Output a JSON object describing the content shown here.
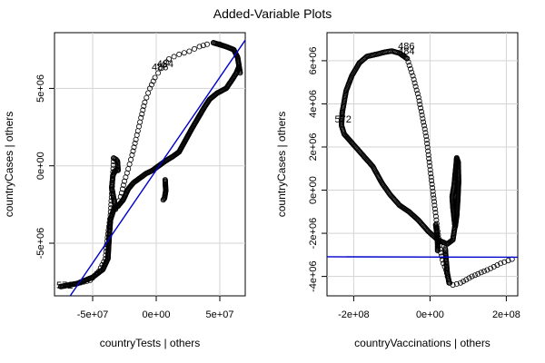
{
  "figure": {
    "title": "Added-Variable Plots"
  },
  "chart_data": [
    {
      "type": "scatter",
      "title": "",
      "xlabel": "countryTests | others",
      "ylabel": "countryCases  | others",
      "xlim": [
        -80000000,
        70000000
      ],
      "ylim": [
        -8400000,
        8600000
      ],
      "xticks": [
        -50000000,
        0,
        50000000
      ],
      "xtick_labels": [
        "-5e+07",
        "0e+00",
        "5e+07"
      ],
      "yticks": [
        -5000000,
        0,
        5000000
      ],
      "ytick_labels": [
        "-5e+06",
        "0e+00",
        "5e+06"
      ],
      "grid": true,
      "marker": "open-circle",
      "point_color": "#000000",
      "fit_line": {
        "color": "#0000cc",
        "slope": 0.12,
        "intercept": -280000
      },
      "annotations": [
        {
          "text": "486",
          "x": 3000000,
          "y": 6400000
        },
        {
          "text": "484",
          "x": 7000000,
          "y": 6600000
        },
        {
          "text": "572",
          "x": -72000000,
          "y": -7700000
        }
      ],
      "paths": [
        {
          "points": [
            [
              -75000000,
              -7800000
            ],
            [
              -62000000,
              -7600000
            ],
            [
              -50000000,
              -7200000
            ],
            [
              -42000000,
              -6700000
            ],
            [
              -38000000,
              -6000000
            ],
            [
              -37000000,
              -4600000
            ],
            [
              -36000000,
              -3500000
            ],
            [
              -33000000,
              -2700000
            ],
            [
              -30000000,
              -2600000
            ],
            [
              -26000000,
              -2200000
            ],
            [
              -22000000,
              -1500000
            ],
            [
              -18000000,
              -1100000
            ],
            [
              -13000000,
              -800000
            ],
            [
              -8000000,
              -500000
            ],
            [
              -3000000,
              -300000
            ],
            [
              2000000,
              0
            ],
            [
              7000000,
              300000
            ],
            [
              13000000,
              600000
            ],
            [
              18000000,
              900000
            ],
            [
              24000000,
              1800000
            ],
            [
              28000000,
              2400000
            ],
            [
              33000000,
              3100000
            ],
            [
              38000000,
              3800000
            ],
            [
              42000000,
              4300000
            ],
            [
              48000000,
              4700000
            ],
            [
              55000000,
              5000000
            ],
            [
              60000000,
              5600000
            ],
            [
              63000000,
              6000000
            ],
            [
              65000000,
              6400000
            ]
          ],
          "step": 1
        },
        {
          "points": [
            [
              -75000000,
              -7800000
            ],
            [
              -62000000,
              -7600000
            ],
            [
              -52000000,
              -7400000
            ],
            [
              -45000000,
              -6800000
            ],
            [
              -40000000,
              -6000000
            ],
            [
              -38000000,
              -4400000
            ],
            [
              -36000000,
              -3200000
            ],
            [
              -35000000,
              -1800000
            ],
            [
              -34000000,
              -400000
            ],
            [
              -33500000,
              500000
            ]
          ],
          "step": 4
        },
        {
          "points": [
            [
              -33500000,
              500000
            ],
            [
              -31500000,
              400000
            ],
            [
              -30500000,
              300000
            ],
            [
              -30000000,
              -300000
            ],
            [
              -32000000,
              -300000
            ],
            [
              -34000000,
              -600000
            ],
            [
              -35000000,
              -1400000
            ],
            [
              -33000000,
              -2300000
            ],
            [
              -32000000,
              -2800000
            ]
          ],
          "step": 1.2
        },
        {
          "points": [
            [
              -32000000,
              -2800000
            ],
            [
              -28000000,
              -2000000
            ],
            [
              -25000000,
              -1000000
            ],
            [
              -22000000,
              -200000
            ],
            [
              -19000000,
              700000
            ],
            [
              -16000000,
              1700000
            ],
            [
              -12000000,
              3100000
            ],
            [
              -9000000,
              4100000
            ],
            [
              -5000000,
              5000000
            ],
            [
              -1000000,
              5700000
            ],
            [
              4000000,
              6300000
            ],
            [
              10000000,
              6900000
            ],
            [
              18000000,
              7200000
            ],
            [
              26000000,
              7400000
            ],
            [
              34000000,
              7700000
            ],
            [
              40000000,
              7850000
            ],
            [
              45000000,
              7950000
            ],
            [
              50000000,
              7850000
            ]
          ],
          "step": 5
        },
        {
          "points": [
            [
              45000000,
              7950000
            ],
            [
              55000000,
              7700000
            ],
            [
              61000000,
              7500000
            ],
            [
              64000000,
              7000000
            ],
            [
              66000000,
              6000000
            ]
          ],
          "step": 1
        },
        {
          "points": [
            [
              7000000,
              -900000
            ],
            [
              7500000,
              -1600000
            ],
            [
              6500000,
              -2100000
            ],
            [
              5500000,
              -2200000
            ]
          ],
          "step": 0.9
        }
      ]
    },
    {
      "type": "scatter",
      "title": "",
      "xlabel": "countryVaccinations | others",
      "ylabel": "countryCases  | others",
      "xlim": [
        -270000000,
        230000000
      ],
      "ylim": [
        -4900000,
        7300000
      ],
      "xticks": [
        -200000000,
        0,
        200000000
      ],
      "xtick_labels": [
        "-2e+08",
        "0e+00",
        "2e+08"
      ],
      "yticks": [
        -4000000,
        -2000000,
        0,
        2000000,
        4000000,
        6000000
      ],
      "ytick_labels": [
        "-4e+06",
        "-2e+06",
        "0e+00",
        "2e+06",
        "4e+06",
        "6e+06"
      ],
      "grid": true,
      "marker": "open-circle",
      "point_color": "#000000",
      "fit_line": {
        "color": "#0000cc",
        "slope": -3.85e-05,
        "intercept": -3100000
      },
      "annotations": [
        {
          "text": "486",
          "x": -62000000,
          "y": 6700000
        },
        {
          "text": "484",
          "x": -62000000,
          "y": 6450000
        },
        {
          "text": "572",
          "x": -228000000,
          "y": 3300000
        }
      ],
      "paths": [
        {
          "points": [
            [
              -230000000,
              3600000
            ],
            [
              -220000000,
              4600000
            ],
            [
              -205000000,
              5300000
            ],
            [
              -185000000,
              5900000
            ],
            [
              -165000000,
              6200000
            ],
            [
              -140000000,
              6300000
            ],
            [
              -118000000,
              6400000
            ],
            [
              -100000000,
              6450000
            ],
            [
              -80000000,
              6350000
            ],
            [
              -60000000,
              6100000
            ]
          ],
          "step": 1.2
        },
        {
          "points": [
            [
              -230000000,
              3600000
            ],
            [
              -232000000,
              3000000
            ],
            [
              -225000000,
              2600000
            ],
            [
              -205000000,
              2200000
            ],
            [
              -180000000,
              1700000
            ],
            [
              -150000000,
              1100000
            ],
            [
              -125000000,
              300000
            ],
            [
              -105000000,
              -200000
            ],
            [
              -80000000,
              -700000
            ],
            [
              -55000000,
              -1000000
            ],
            [
              -30000000,
              -1400000
            ],
            [
              -5000000,
              -1900000
            ],
            [
              20000000,
              -2300000
            ],
            [
              45000000,
              -2500000
            ],
            [
              60000000,
              -2300000
            ],
            [
              65000000,
              -1700000
            ]
          ],
          "step": 1.2
        },
        {
          "points": [
            [
              -60000000,
              6100000
            ],
            [
              -45000000,
              5300000
            ],
            [
              -30000000,
              4300000
            ],
            [
              -10000000,
              2500000
            ],
            [
              3000000,
              600000
            ],
            [
              12000000,
              -700000
            ],
            [
              20000000,
              -1900000
            ],
            [
              28000000,
              -2900000
            ],
            [
              35000000,
              -3400000
            ],
            [
              42000000,
              -3700000
            ],
            [
              46000000,
              -4000000
            ],
            [
              52000000,
              -4300000
            ],
            [
              60000000,
              -4400000
            ],
            [
              80000000,
              -4300000
            ],
            [
              110000000,
              -4000000
            ],
            [
              150000000,
              -3700000
            ],
            [
              185000000,
              -3400000
            ],
            [
              215000000,
              -3200000
            ]
          ],
          "step": 4
        },
        {
          "points": [
            [
              50000000,
              -4300000
            ],
            [
              45000000,
              -3800000
            ],
            [
              42000000,
              -3200000
            ],
            [
              40000000,
              -2700000
            ]
          ],
          "step": 1.2
        },
        {
          "points": [
            [
              15000000,
              -1600000
            ],
            [
              18000000,
              -2000000
            ],
            [
              20000000,
              -2500000
            ],
            [
              20000000,
              -2800000
            ]
          ],
          "step": 1
        },
        {
          "points": [
            [
              63000000,
              200000
            ],
            [
              58000000,
              -300000
            ],
            [
              60000000,
              -800000
            ],
            [
              65000000,
              -1600000
            ]
          ],
          "step": 1
        },
        {
          "points": [
            [
              63000000,
              200000
            ],
            [
              67000000,
              900000
            ],
            [
              70000000,
              1500000
            ],
            [
              74000000,
              1300000
            ],
            [
              75000000,
              400000
            ],
            [
              73000000,
              -400000
            ],
            [
              70000000,
              -1200000
            ],
            [
              66000000,
              -1700000
            ]
          ],
          "step": 1
        }
      ]
    }
  ]
}
